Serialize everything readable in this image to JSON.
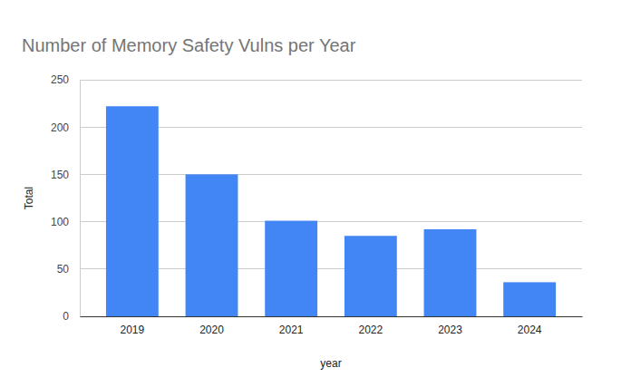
{
  "chart_data": {
    "type": "bar",
    "title": "Number of Memory Safety Vulns per Year",
    "x_label": "year",
    "y_label": "Total",
    "categories": [
      "2019",
      "2020",
      "2021",
      "2022",
      "2023",
      "2024"
    ],
    "values": [
      222,
      150,
      101,
      85,
      92,
      36
    ],
    "color": "#4285f4",
    "ylim": [
      0,
      250
    ],
    "yticks": [
      0,
      50,
      100,
      150,
      200,
      250
    ],
    "grid": true
  }
}
